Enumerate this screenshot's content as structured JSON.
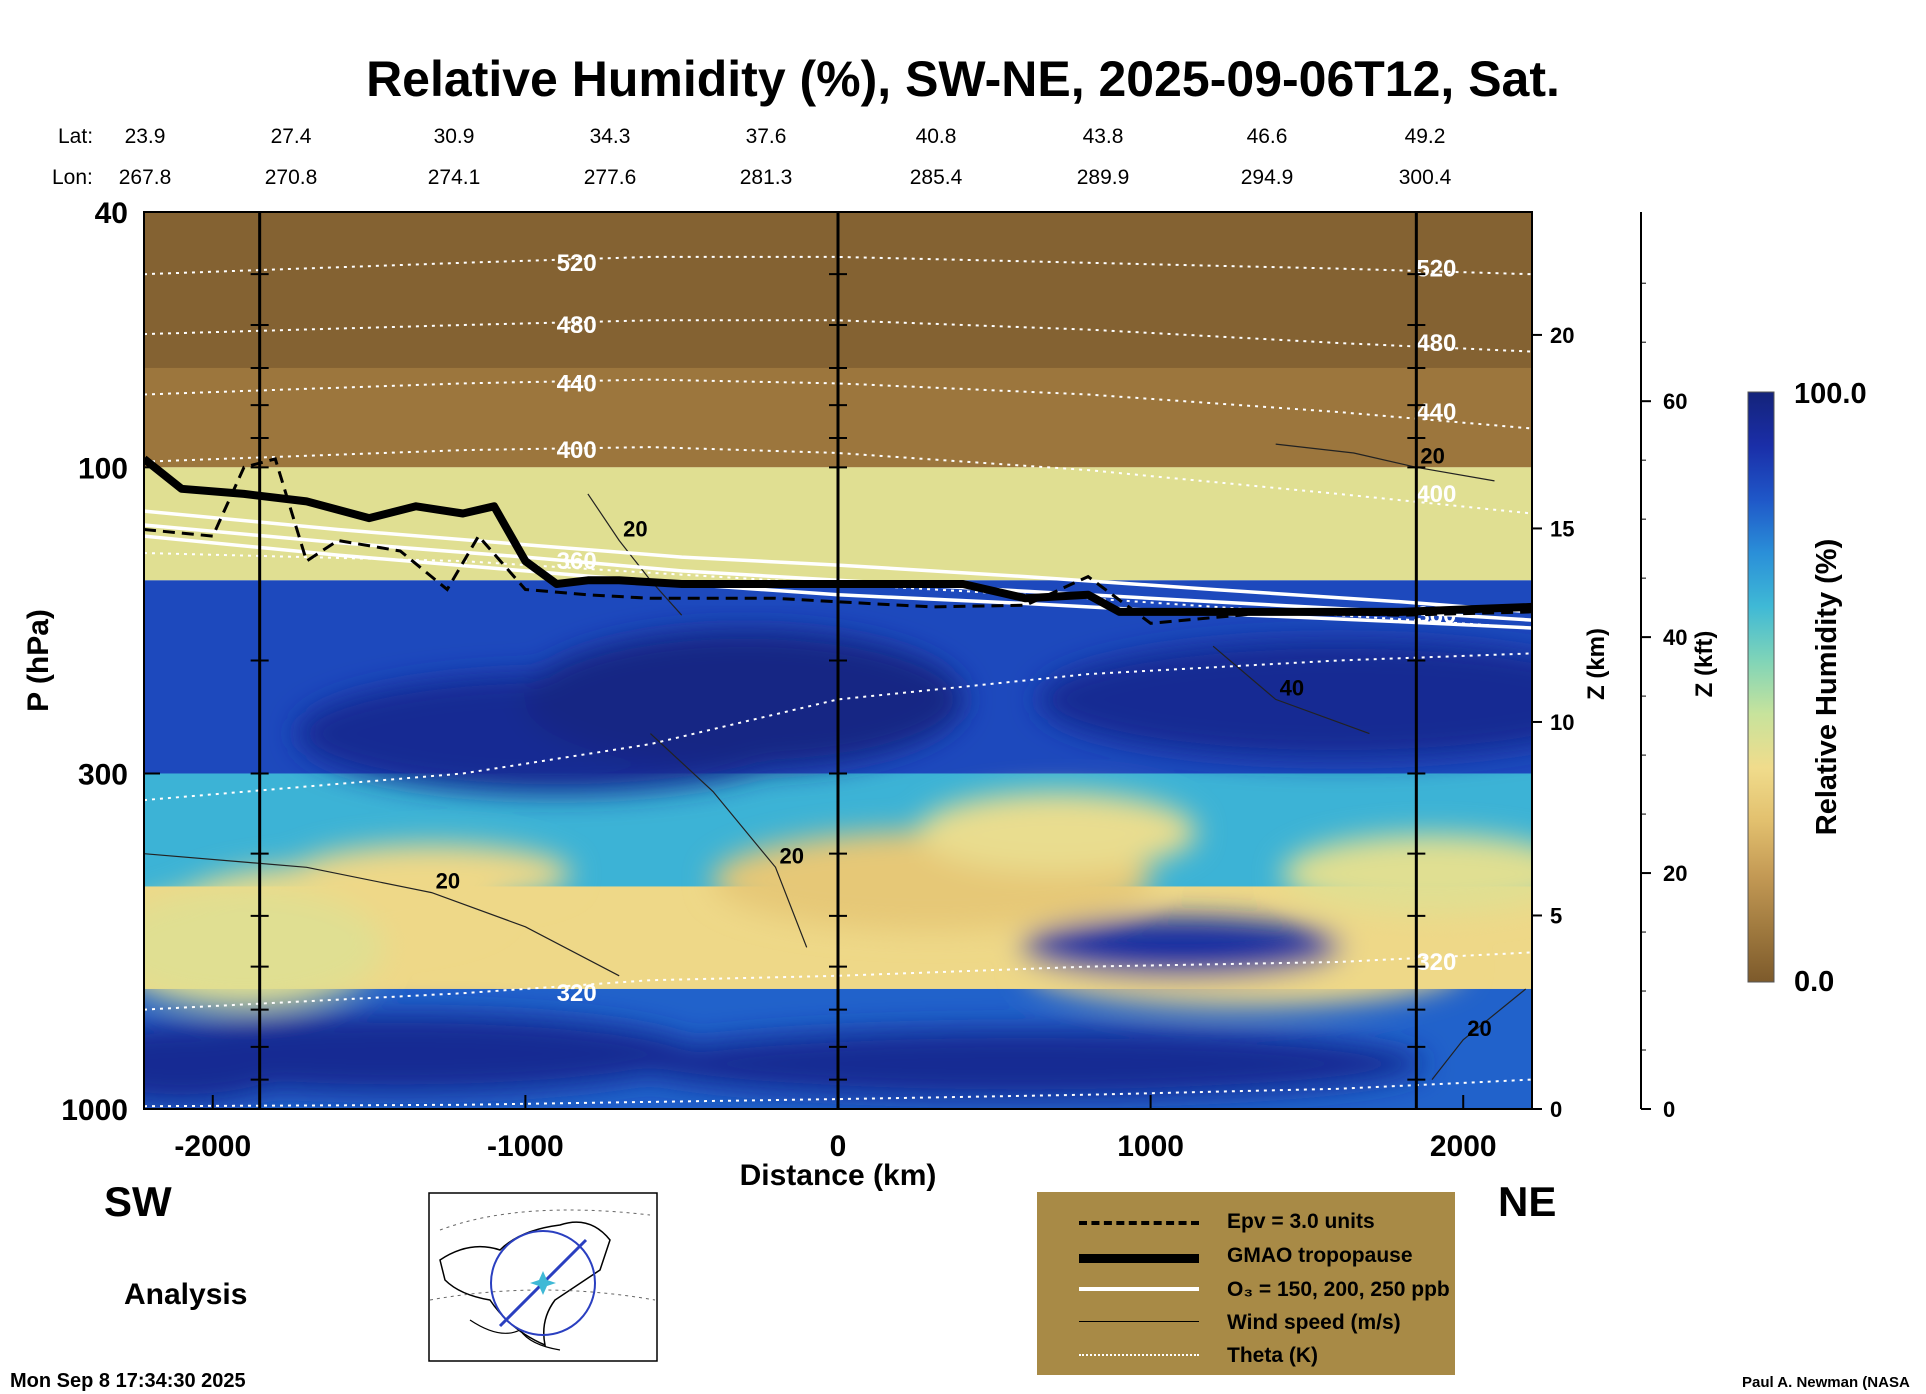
{
  "title": "Relative Humidity (%), SW-NE, 2025-09-06T12, Sat.",
  "header": {
    "lat_label": "Lat:",
    "lon_label": "Lon:",
    "lat_values": [
      "23.9",
      "27.4",
      "30.9",
      "34.3",
      "37.6",
      "40.8",
      "43.8",
      "46.6",
      "49.2"
    ],
    "lon_values": [
      "267.8",
      "270.8",
      "274.1",
      "277.6",
      "281.3",
      "285.4",
      "289.9",
      "294.9",
      "300.4"
    ]
  },
  "labels": {
    "sw": "SW",
    "ne": "NE",
    "analysis": "Analysis",
    "timestamp": "Mon Sep  8 17:34:30 2025",
    "credit": "Paul A. Newman (NASA"
  },
  "legend": {
    "items": [
      {
        "label": "Epv = 3.0 units",
        "style": "dashed"
      },
      {
        "label": "GMAO tropopause",
        "style": "thick"
      },
      {
        "label": "O₃ = 150, 200, 250 ppb",
        "style": "white"
      },
      {
        "label": "Wind speed (m/s)",
        "style": "thin"
      },
      {
        "label": "Theta (K)",
        "style": "dotted"
      }
    ]
  },
  "colorbar": {
    "title": "Relative Humidity (%)",
    "max_label": "100.0",
    "min_label": "0.0",
    "colors": [
      "#7d5a2b",
      "#a07a3f",
      "#c49a55",
      "#e2c06e",
      "#f0dc8c",
      "#c7e39c",
      "#7fd4b8",
      "#3fb9d6",
      "#2a8fd8",
      "#1f57c8",
      "#1a2ea8",
      "#14237a"
    ]
  },
  "chart_data": {
    "type": "heatmap",
    "field": "Relative Humidity (%)",
    "xlabel": "Distance (km)",
    "ylabel": "P (hPa)",
    "y2label": "Z (km)",
    "y3label": "Z (kft)",
    "xlim": [
      -2220,
      2220
    ],
    "ylim": [
      1000,
      40
    ],
    "y_scale": "log",
    "x_ticks": [
      -2000,
      -1000,
      0,
      1000,
      2000
    ],
    "x_tick_labels": [
      "-2000",
      "-1000",
      "0",
      "1000",
      "2000"
    ],
    "p_ticks": [
      40,
      100,
      300,
      1000
    ],
    "p_tick_labels": [
      "40",
      "100",
      "300",
      "1000"
    ],
    "z_km_ticks": [
      0,
      5,
      10,
      15,
      20
    ],
    "z_km_tick_labels": [
      "0",
      "5",
      "10",
      "15",
      "20"
    ],
    "z_kft_ticks": [
      0,
      20,
      40,
      60
    ],
    "z_kft_tick_labels": [
      "0",
      "20",
      "40",
      "60"
    ],
    "vertical_markers_km": [
      -1850,
      0,
      1850
    ],
    "colorbar_range": [
      0.0,
      100.0
    ],
    "theta_contours": [
      {
        "label": "520",
        "x": [
          -2220,
          -1200,
          -600,
          0,
          800,
          1600,
          2220
        ],
        "p": [
          50,
          48,
          47,
          47,
          48,
          49,
          50
        ]
      },
      {
        "label": "480",
        "x": [
          -2220,
          -1200,
          -600,
          0,
          800,
          1600,
          2220
        ],
        "p": [
          62,
          60,
          59,
          59,
          61,
          64,
          66
        ]
      },
      {
        "label": "440",
        "x": [
          -2220,
          -1200,
          -600,
          0,
          800,
          1600,
          2220
        ],
        "p": [
          77,
          74,
          73,
          74,
          77,
          82,
          87
        ]
      },
      {
        "label": "400",
        "x": [
          -2220,
          -1200,
          -600,
          0,
          800,
          1600,
          2220
        ],
        "p": [
          98,
          94,
          93,
          95,
          101,
          110,
          118
        ]
      },
      {
        "label": "360",
        "x": [
          -2220,
          -1200,
          -600,
          0,
          800,
          1600,
          2220
        ],
        "p": [
          136,
          140,
          146,
          152,
          160,
          170,
          178
        ]
      },
      {
        "label": "",
        "x": [
          -2220,
          -1200,
          -600,
          0,
          800,
          1600,
          2220
        ],
        "p": [
          330,
          300,
          270,
          230,
          210,
          200,
          195
        ]
      },
      {
        "label": "320",
        "x": [
          -2220,
          -1200,
          -600,
          0,
          800,
          1600,
          2220
        ],
        "p": [
          700,
          660,
          630,
          620,
          600,
          590,
          570
        ]
      },
      {
        "label": "",
        "x": [
          -2220,
          -1200,
          -600,
          0,
          800,
          1600,
          2220
        ],
        "p": [
          990,
          985,
          975,
          965,
          950,
          930,
          900
        ]
      }
    ],
    "wind_contours": [
      {
        "label": "20",
        "x": [
          -2220,
          -1700,
          -1300,
          -1000,
          -700
        ],
        "p": [
          400,
          420,
          460,
          520,
          620
        ]
      },
      {
        "label": "20",
        "x": [
          -600,
          -400,
          -200,
          -100
        ],
        "p": [
          260,
          320,
          420,
          560
        ]
      },
      {
        "label": "20",
        "x": [
          -500,
          -600,
          -700,
          -800
        ],
        "p": [
          170,
          150,
          130,
          110
        ]
      },
      {
        "label": "20",
        "x": [
          1400,
          1650,
          1850,
          2100
        ],
        "p": [
          92,
          95,
          100,
          105
        ]
      },
      {
        "label": "40",
        "x": [
          1200,
          1400,
          1700
        ],
        "p": [
          190,
          230,
          260
        ]
      },
      {
        "label": "20",
        "x": [
          1900,
          2000,
          2200
        ],
        "p": [
          900,
          780,
          650
        ]
      }
    ],
    "gmao_tropopause": {
      "x": [
        -2220,
        -2100,
        -1900,
        -1700,
        -1500,
        -1350,
        -1200,
        -1100,
        -1000,
        -900,
        -800,
        -700,
        -500,
        -300,
        0,
        200,
        400,
        600,
        800,
        900,
        1000,
        1400,
        1800,
        2220
      ],
      "p": [
        97,
        108,
        110,
        113,
        120,
        115,
        118,
        115,
        140,
        152,
        150,
        150,
        152,
        152,
        152,
        152,
        152,
        160,
        158,
        168,
        168,
        168,
        168,
        165
      ]
    },
    "epv_3_units": {
      "x": [
        -2220,
        -2000,
        -1900,
        -1800,
        -1700,
        -1600,
        -1400,
        -1250,
        -1150,
        -1000,
        -800,
        -600,
        -400,
        -200,
        0,
        300,
        600,
        800,
        1000,
        1400,
        1800,
        2220
      ],
      "p": [
        125,
        128,
        100,
        97,
        140,
        130,
        135,
        155,
        128,
        155,
        158,
        160,
        160,
        160,
        162,
        165,
        164,
        148,
        175,
        168,
        170,
        168
      ]
    },
    "o3_150_200_250_ppb": [
      {
        "x": [
          -2220,
          -1600,
          -1000,
          -500,
          0,
          600,
          1200,
          1800,
          2220
        ],
        "p": [
          117,
          125,
          132,
          138,
          142,
          148,
          155,
          162,
          168
        ]
      },
      {
        "x": [
          -2220,
          -1600,
          -1000,
          -500,
          0,
          600,
          1200,
          1800,
          2220
        ],
        "p": [
          123,
          131,
          138,
          145,
          150,
          156,
          162,
          168,
          173
        ]
      },
      {
        "x": [
          -2220,
          -1600,
          -1000,
          -500,
          0,
          600,
          1200,
          1800,
          2220
        ],
        "p": [
          128,
          137,
          145,
          152,
          158,
          163,
          169,
          174,
          178
        ]
      }
    ],
    "rh_field_description_bands": [
      {
        "p_top": 40,
        "p_bottom": 100,
        "rh": 8
      },
      {
        "p_top": 100,
        "p_bottom": 150,
        "rh": 40
      },
      {
        "p_top": 150,
        "p_bottom": 300,
        "rh": 85
      },
      {
        "p_top": 300,
        "p_bottom": 450,
        "rh": 65
      },
      {
        "p_top": 450,
        "p_bottom": 650,
        "rh": 35
      },
      {
        "p_top": 650,
        "p_bottom": 1000,
        "rh": 80
      }
    ]
  }
}
